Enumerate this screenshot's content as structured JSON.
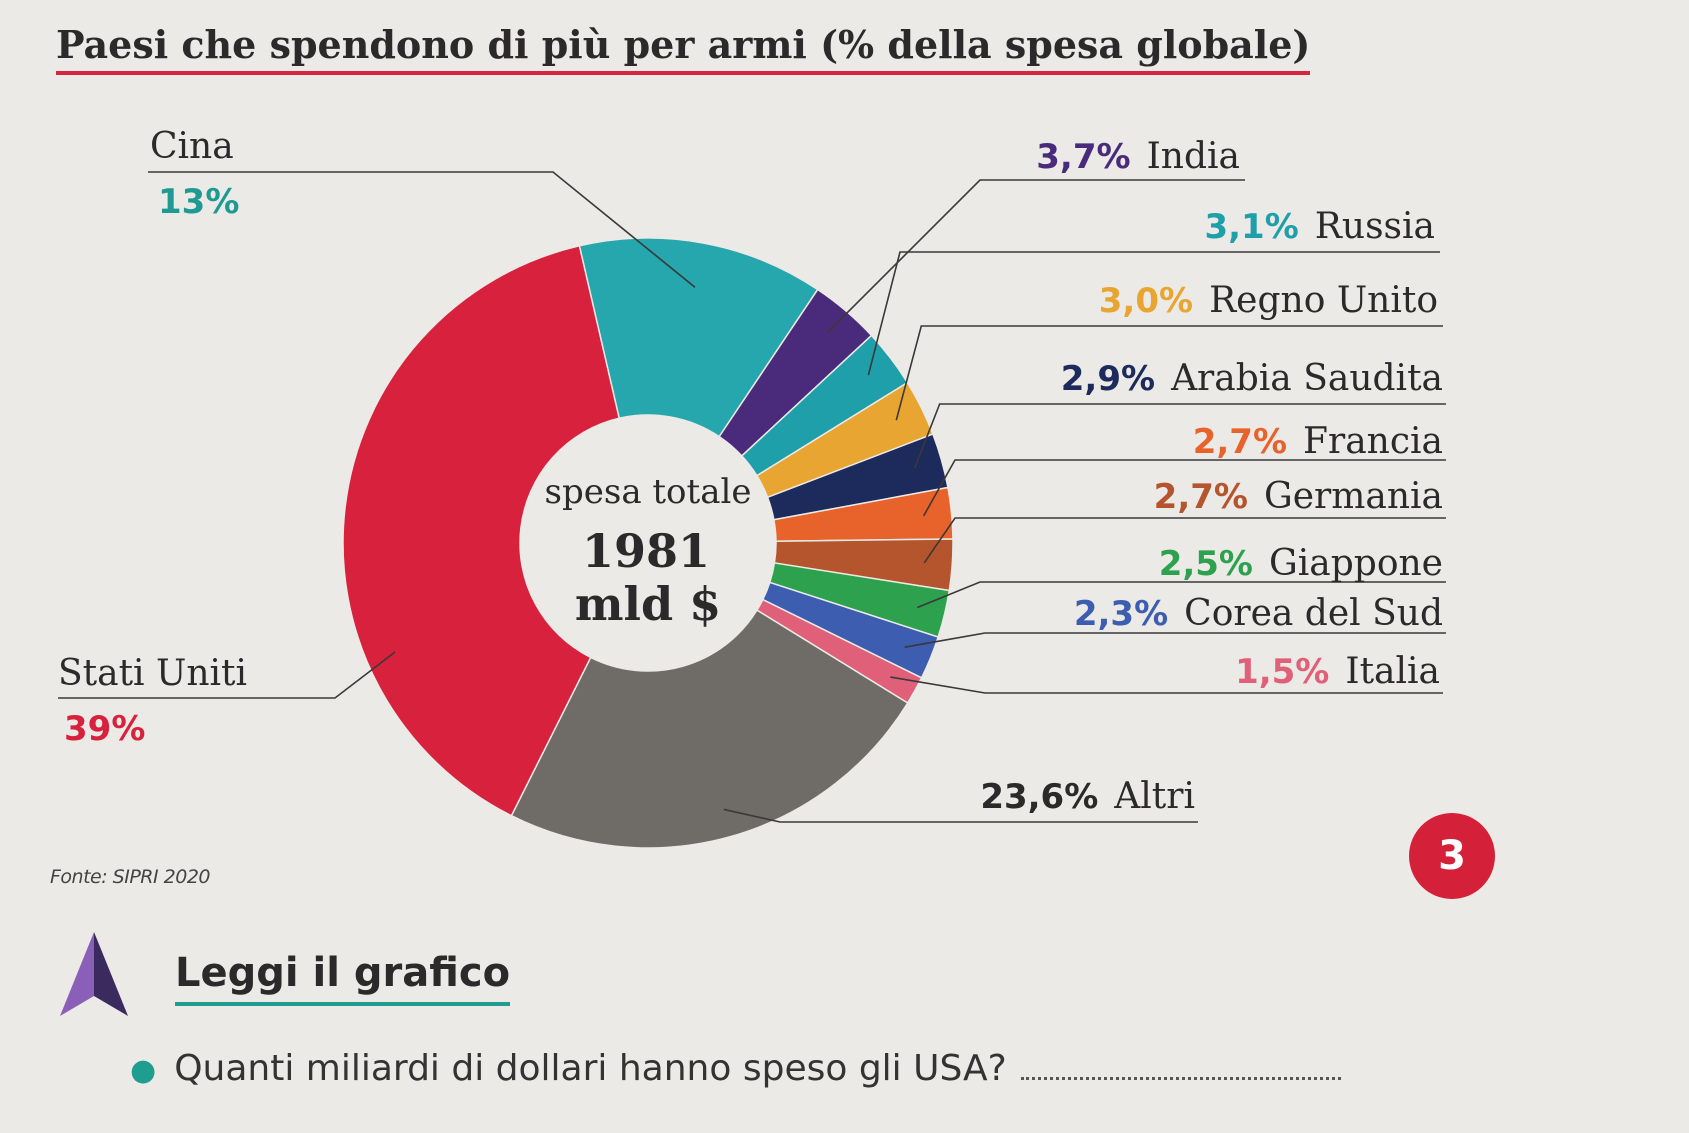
{
  "title": "Paesi che spendono di più per armi (% della spesa globale)",
  "source": "Fonte: SIPRI 2020",
  "badge": "3",
  "exercise": {
    "heading": "Leggi il grafico",
    "question": "Quanti miliardi di dollari hanno speso gli USA?"
  },
  "chart_data": {
    "type": "pie",
    "title": "Paesi che spendono di più per armi (% della spesa globale)",
    "center_label": {
      "line1": "spesa totale",
      "line2": "1981",
      "line3": "mld $"
    },
    "unit": "%",
    "slices": [
      {
        "name": "Cina",
        "value": 13,
        "label": "13%",
        "color": "#26a6ad"
      },
      {
        "name": "India",
        "value": 3.7,
        "label": "3,7%",
        "color": "#4a2a7a"
      },
      {
        "name": "Russia",
        "value": 3.1,
        "label": "3,1%",
        "color": "#1f9faa"
      },
      {
        "name": "Regno Unito",
        "value": 3.0,
        "label": "3,0%",
        "color": "#e8a531"
      },
      {
        "name": "Arabia Saudita",
        "value": 2.9,
        "label": "2,9%",
        "color": "#1d2a5c"
      },
      {
        "name": "Francia",
        "value": 2.7,
        "label": "2,7%",
        "color": "#e8622b"
      },
      {
        "name": "Germania",
        "value": 2.7,
        "label": "2,7%",
        "color": "#b5552e"
      },
      {
        "name": "Giappone",
        "value": 2.5,
        "label": "2,5%",
        "color": "#2da14e"
      },
      {
        "name": "Corea del Sud",
        "value": 2.3,
        "label": "2,3%",
        "color": "#3d5db0"
      },
      {
        "name": "Italia",
        "value": 1.5,
        "label": "1,5%",
        "color": "#e0607a"
      },
      {
        "name": "Altri",
        "value": 23.6,
        "label": "23,6%",
        "color": "#6f6b66"
      },
      {
        "name": "Stati Uniti",
        "value": 39,
        "label": "39%",
        "color": "#d8213d"
      }
    ],
    "label_colors": {
      "Cina": "#1f9a93",
      "India": "#4a2a7a",
      "Russia": "#1f9faa",
      "Regno Unito": "#e8a531",
      "Arabia Saudita": "#1d2a5c",
      "Francia": "#e8622b",
      "Germania": "#b5552e",
      "Giappone": "#2da14e",
      "Corea del Sud": "#3d5db0",
      "Italia": "#e0607a",
      "Altri": "#2b2929",
      "Stati Uniti": "#d8213d"
    }
  }
}
